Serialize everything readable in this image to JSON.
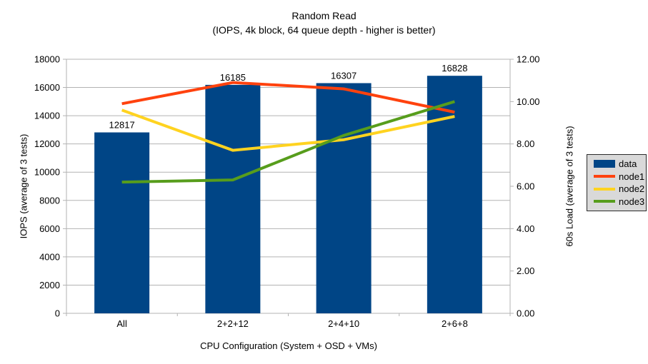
{
  "chart_data": {
    "type": "bar",
    "title": "Random Read",
    "subtitle": "(IOPS, 4k block, 64 queue depth - higher is better)",
    "xlabel": "CPU Configuration (System + OSD + VMs)",
    "ylabel_left": "IOPS (average of 3 tests)",
    "ylabel_right": "60s Load (average of 3 tests)",
    "categories": [
      "All",
      "2+2+12",
      "2+4+10",
      "2+6+8"
    ],
    "bar_series": {
      "name": "data",
      "axis": "left",
      "color": "#004586",
      "values": [
        12817,
        16185,
        16307,
        16828
      ],
      "data_labels": [
        "12817",
        "16185",
        "16307",
        "16828"
      ]
    },
    "line_series": [
      {
        "name": "node1",
        "axis": "right",
        "color": "#ff420e",
        "values": [
          9.9,
          10.9,
          10.6,
          9.5
        ]
      },
      {
        "name": "node2",
        "axis": "right",
        "color": "#ffd320",
        "values": [
          9.6,
          7.7,
          8.2,
          9.3
        ]
      },
      {
        "name": "node3",
        "axis": "right",
        "color": "#579d1c",
        "values": [
          6.2,
          6.3,
          8.4,
          10.0
        ]
      }
    ],
    "y_left": {
      "min": 0,
      "max": 18000,
      "step": 2000,
      "tick_labels": [
        "0",
        "2000",
        "4000",
        "6000",
        "8000",
        "10000",
        "12000",
        "14000",
        "16000",
        "18000"
      ]
    },
    "y_right": {
      "min": 0,
      "max": 12,
      "step": 2,
      "tick_labels": [
        "0.00",
        "2.00",
        "4.00",
        "6.00",
        "8.00",
        "10.00",
        "12.00"
      ]
    },
    "grid": true,
    "legend_position": "right",
    "colors": {
      "grid": "#b3b3b3",
      "axis": "#b3b3b3",
      "legend_bg": "#d9d9d9",
      "text": "#000000"
    }
  }
}
